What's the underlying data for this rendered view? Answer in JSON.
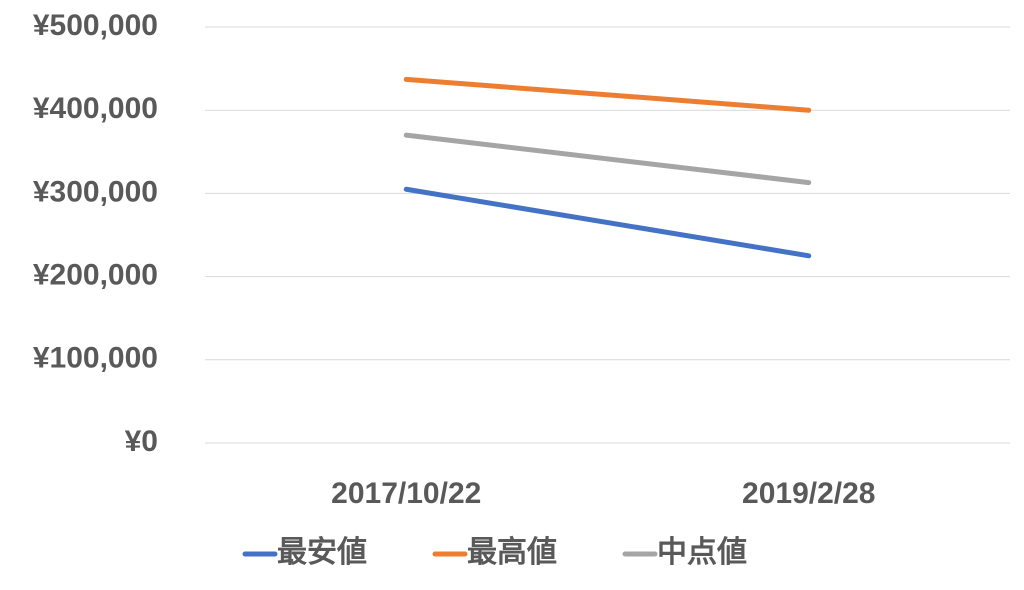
{
  "chart_data": {
    "type": "line",
    "categories": [
      "2017/10/22",
      "2019/2/28"
    ],
    "series": [
      {
        "name": "最安値",
        "color": "#4472c4",
        "values": [
          305000,
          225000
        ]
      },
      {
        "name": "最高値",
        "color": "#ed7d31",
        "values": [
          437000,
          400000
        ]
      },
      {
        "name": "中点値",
        "color": "#a5a5a5",
        "values": [
          370000,
          313000
        ]
      }
    ],
    "ylim": [
      0,
      500000
    ],
    "yticks": [
      {
        "value": 0,
        "label": "¥0"
      },
      {
        "value": 100000,
        "label": "¥100,000"
      },
      {
        "value": 200000,
        "label": "¥200,000"
      },
      {
        "value": 300000,
        "label": "¥300,000"
      },
      {
        "value": 400000,
        "label": "¥400,000"
      },
      {
        "value": 500000,
        "label": "¥500,000"
      }
    ],
    "grid": true,
    "legend": "bottom"
  }
}
